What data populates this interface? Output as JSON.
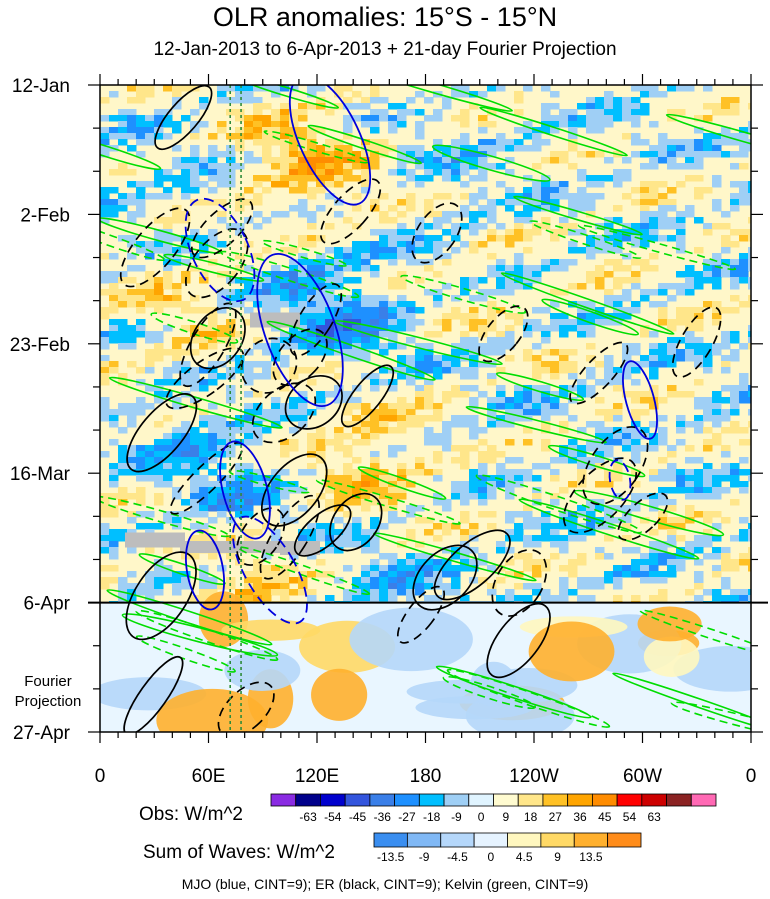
{
  "chart_data": {
    "type": "heatmap",
    "title": "OLR anomalies: 15°S - 15°N",
    "subtitle": "12-Jan-2013 to 6-Apr-2013 + 21-day Fourier Projection",
    "x_tick_labels": [
      "0",
      "60E",
      "120E",
      "180",
      "120W",
      "60W",
      "0"
    ],
    "x_ticks_deg": [
      0,
      60,
      120,
      180,
      240,
      300,
      360
    ],
    "xlim_deg": [
      0,
      360
    ],
    "y_tick_labels": [
      "12-Jan",
      "2-Feb",
      "23-Feb",
      "16-Mar",
      "6-Apr",
      "27-Apr"
    ],
    "y_ticks_day": [
      0,
      21,
      42,
      63,
      84,
      105
    ],
    "ylim_day": [
      0,
      105
    ],
    "projection_start_day": 84,
    "projection_label": [
      "Fourier",
      "Projection"
    ],
    "reference_lines_deg": [
      72,
      78
    ],
    "obs_colorbar": {
      "label": "Obs: W/m^2",
      "levels": [
        "-63",
        "-54",
        "-45",
        "-36",
        "-27",
        "-18",
        "-9",
        "0",
        "9",
        "18",
        "27",
        "36",
        "45",
        "54",
        "63"
      ],
      "colors": [
        "#8a2be2",
        "#00008b",
        "#0000cd",
        "#3355dd",
        "#3a7fe8",
        "#1e90ff",
        "#00bfff",
        "#9fcff5",
        "#e0f4ff",
        "#fffbd0",
        "#ffe68a",
        "#ffc125",
        "#ffa500",
        "#ff8c00",
        "#ff0000",
        "#cd0000",
        "#8b2323",
        "#ff69b4"
      ]
    },
    "waves_colorbar": {
      "label": "Sum of Waves: W/m^2",
      "levels": [
        "-13.5",
        "-9",
        "-4.5",
        "0",
        "4.5",
        "9",
        "13.5"
      ],
      "colors": [
        "#3a8ef0",
        "#80b8f5",
        "#b5d7fa",
        "#e6f3ff",
        "#fff7bf",
        "#ffd966",
        "#ffb02e",
        "#ff8c1a"
      ]
    },
    "contour_legend": "MJO (blue, CINT=9); ER (black, CINT=9); Kelvin (green, CINT=9)",
    "series": [
      {
        "name": "MJO",
        "color": "#0000dd"
      },
      {
        "name": "ER",
        "color": "#000000"
      },
      {
        "name": "Kelvin",
        "color": "#00dd00"
      }
    ]
  }
}
